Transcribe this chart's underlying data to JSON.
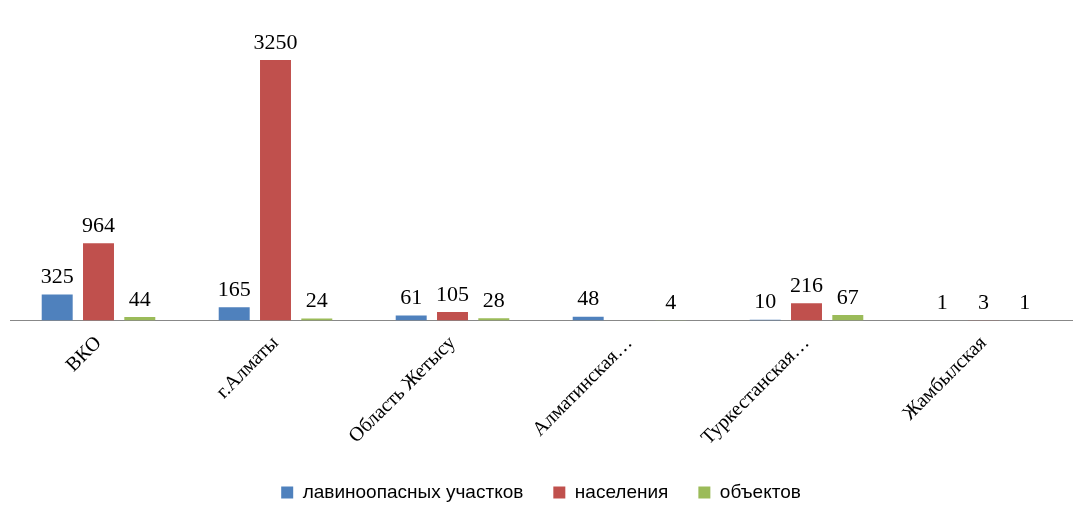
{
  "chart_data": {
    "type": "bar",
    "categories": [
      "ВКО",
      "г.Алматы",
      "Область Жетысу",
      "Алматинская…",
      "Туркестанская…",
      "Жамбылская"
    ],
    "series": [
      {
        "name": "лавиноопасных участков",
        "color": "#4f81bd",
        "values": [
          325,
          165,
          61,
          48,
          10,
          1
        ]
      },
      {
        "name": "населения",
        "color": "#c0504d",
        "values": [
          964,
          3250,
          105,
          null,
          216,
          3
        ]
      },
      {
        "name": "объектов",
        "color": "#9bbb59",
        "values": [
          44,
          24,
          28,
          4,
          67,
          1
        ]
      }
    ],
    "data_labels": true,
    "legend": "bottom",
    "grid": false
  }
}
